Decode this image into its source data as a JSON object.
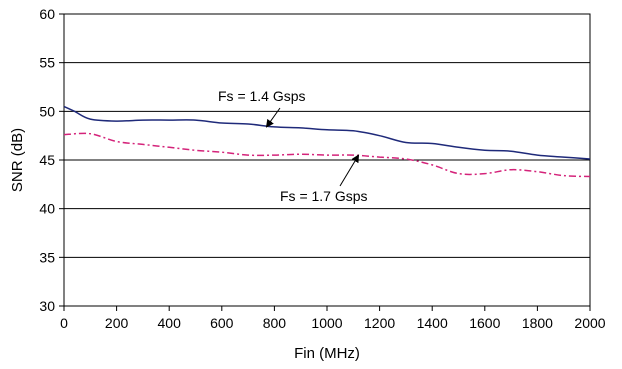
{
  "chart_data": {
    "type": "line",
    "xlabel": "Fin (MHz)",
    "ylabel": "SNR (dB)",
    "xlim": [
      0,
      2000
    ],
    "ylim": [
      30,
      60
    ],
    "x_ticks": [
      0,
      200,
      400,
      600,
      800,
      1000,
      1200,
      1400,
      1600,
      1800,
      2000
    ],
    "y_ticks": [
      30,
      35,
      40,
      45,
      50,
      55,
      60
    ],
    "grid": "horizontal",
    "legend": "none",
    "series": [
      {
        "name": "Fs = 1.4 Gsps",
        "color": "#1f2a7a",
        "style": "solid",
        "x": [
          0,
          40,
          100,
          200,
          300,
          400,
          500,
          600,
          700,
          800,
          900,
          1000,
          1100,
          1200,
          1300,
          1400,
          1500,
          1600,
          1700,
          1800,
          1900,
          2000
        ],
        "y": [
          50.5,
          50.0,
          49.2,
          49.0,
          49.1,
          49.1,
          49.1,
          48.8,
          48.7,
          48.4,
          48.3,
          48.1,
          48.0,
          47.5,
          46.8,
          46.7,
          46.3,
          46.0,
          45.9,
          45.5,
          45.3,
          45.1
        ]
      },
      {
        "name": "Fs = 1.7 Gsps",
        "color": "#d4237a",
        "style": "dash-dot",
        "x": [
          0,
          100,
          200,
          300,
          400,
          500,
          600,
          700,
          800,
          900,
          1000,
          1100,
          1200,
          1300,
          1400,
          1500,
          1600,
          1700,
          1800,
          1900,
          2000
        ],
        "y": [
          47.6,
          47.7,
          46.9,
          46.6,
          46.3,
          46.0,
          45.8,
          45.5,
          45.5,
          45.6,
          45.5,
          45.5,
          45.3,
          45.1,
          44.5,
          43.6,
          43.6,
          44.0,
          43.8,
          43.4,
          43.3
        ]
      }
    ],
    "annotations": [
      {
        "text": "Fs = 1.4 Gsps",
        "target_series": "Fs = 1.4 Gsps",
        "arrow_to": [
          770,
          48.4
        ]
      },
      {
        "text": "Fs = 1.7 Gsps",
        "target_series": "Fs = 1.7 Gsps",
        "arrow_to": [
          1120,
          45.5
        ]
      }
    ]
  }
}
